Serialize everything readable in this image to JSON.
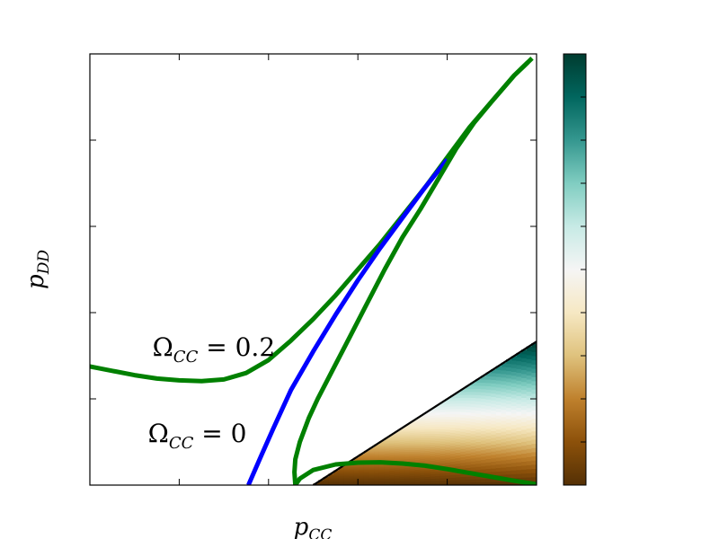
{
  "chart_data": {
    "type": "line",
    "title": "",
    "xlabel": {
      "main": "p",
      "sub": "CC"
    },
    "ylabel": {
      "main": "p",
      "sub": "DD"
    },
    "xlim": [
      0.0,
      1.0
    ],
    "ylim": [
      0.0,
      1.0
    ],
    "xticks": [
      "0.0",
      "0.2",
      "0.4",
      "0.6",
      "0.8",
      "1.0"
    ],
    "yticks": [
      "0.0",
      "0.2",
      "0.4",
      "0.6",
      "0.8",
      "1.0"
    ],
    "grid": false,
    "legend": "none",
    "annotations": [
      {
        "main": "Ω",
        "sub": "CC",
        "rest": " = 0.2",
        "x": 0.14,
        "y": 0.3
      },
      {
        "main": "Ω",
        "sub": "CC",
        "rest": " = 0",
        "x": 0.13,
        "y": 0.1
      }
    ],
    "colorbar": {
      "ticks": [
        "0.0",
        "0.1",
        "0.2",
        "0.3",
        "0.4",
        "0.5",
        "0.6",
        "0.7",
        "0.8",
        "0.9",
        "1.0"
      ],
      "range": [
        0.0,
        1.0
      ],
      "colormap": "BrBG",
      "stops": [
        "#543005",
        "#8c510a",
        "#bf812d",
        "#dfc27d",
        "#f6e8c3",
        "#f5f5f5",
        "#c7eae5",
        "#80cdc1",
        "#35978f",
        "#01665e",
        "#003c30"
      ]
    },
    "heatmap_region": {
      "vertices": [
        [
          0.5,
          0.0
        ],
        [
          1.0,
          0.0
        ],
        [
          1.0,
          0.333
        ]
      ],
      "edge_color": "#000000"
    },
    "series": [
      {
        "color": "#008000",
        "points": [
          [
            0.0,
            0.275
          ],
          [
            0.05,
            0.265
          ],
          [
            0.1,
            0.255
          ],
          [
            0.15,
            0.247
          ],
          [
            0.2,
            0.243
          ],
          [
            0.25,
            0.241
          ],
          [
            0.3,
            0.245
          ],
          [
            0.35,
            0.26
          ],
          [
            0.4,
            0.29
          ],
          [
            0.45,
            0.335
          ],
          [
            0.5,
            0.385
          ],
          [
            0.55,
            0.44
          ],
          [
            0.6,
            0.5
          ],
          [
            0.65,
            0.56
          ],
          [
            0.7,
            0.625
          ],
          [
            0.75,
            0.69
          ],
          [
            0.8,
            0.76
          ],
          [
            0.85,
            0.83
          ],
          [
            0.9,
            0.89
          ],
          [
            0.95,
            0.95
          ],
          [
            0.97,
            0.97
          ],
          [
            0.99,
            0.99
          ]
        ]
      },
      {
        "color": "#0000ff",
        "points": [
          [
            0.355,
            0.0
          ],
          [
            0.38,
            0.06
          ],
          [
            0.41,
            0.13
          ],
          [
            0.45,
            0.22
          ],
          [
            0.5,
            0.31
          ],
          [
            0.55,
            0.395
          ],
          [
            0.6,
            0.475
          ],
          [
            0.65,
            0.55
          ],
          [
            0.7,
            0.62
          ],
          [
            0.75,
            0.69
          ],
          [
            0.8,
            0.755
          ]
        ]
      },
      {
        "color": "#008000",
        "points": [
          [
            0.46,
            0.0
          ],
          [
            0.458,
            0.03
          ],
          [
            0.46,
            0.06
          ],
          [
            0.47,
            0.1
          ],
          [
            0.49,
            0.155
          ],
          [
            0.51,
            0.2
          ],
          [
            0.54,
            0.26
          ],
          [
            0.58,
            0.34
          ],
          [
            0.62,
            0.42
          ],
          [
            0.66,
            0.5
          ],
          [
            0.7,
            0.575
          ],
          [
            0.74,
            0.64
          ],
          [
            0.78,
            0.71
          ],
          [
            0.82,
            0.78
          ],
          [
            0.86,
            0.84
          ],
          [
            0.9,
            0.89
          ],
          [
            0.95,
            0.95
          ],
          [
            0.98,
            0.98
          ]
        ]
      },
      {
        "color": "#008000",
        "points": [
          [
            0.46,
            0.0
          ],
          [
            0.47,
            0.015
          ],
          [
            0.5,
            0.035
          ],
          [
            0.55,
            0.048
          ],
          [
            0.6,
            0.052
          ],
          [
            0.65,
            0.053
          ],
          [
            0.7,
            0.05
          ],
          [
            0.75,
            0.045
          ],
          [
            0.8,
            0.037
          ],
          [
            0.85,
            0.028
          ],
          [
            0.9,
            0.019
          ],
          [
            0.95,
            0.01
          ],
          [
            1.0,
            0.002
          ]
        ]
      }
    ]
  }
}
